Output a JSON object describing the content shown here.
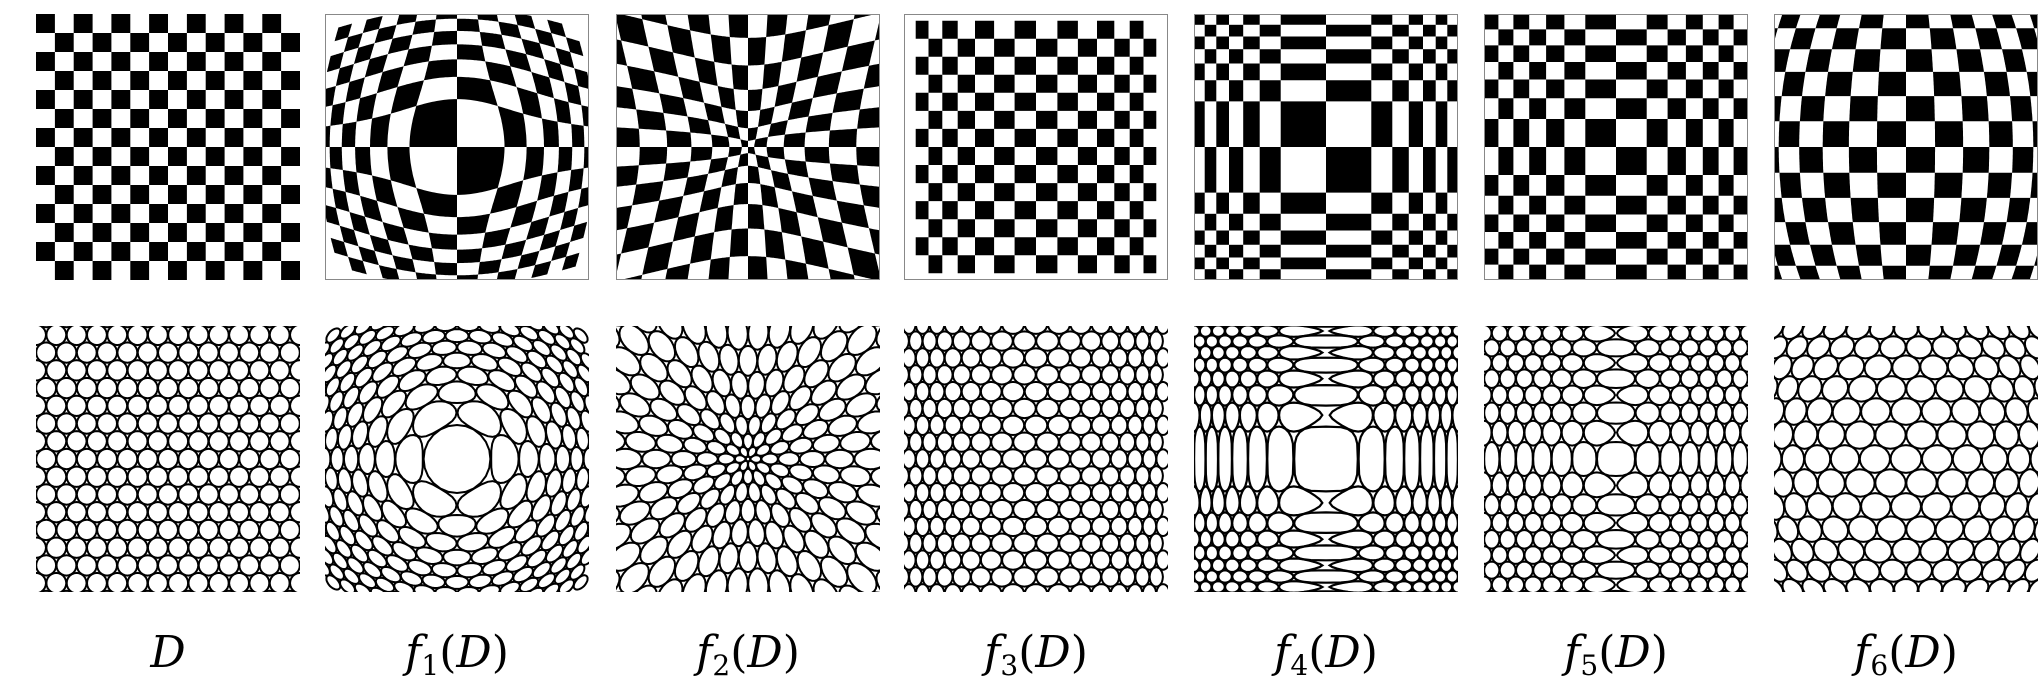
{
  "figure": {
    "columns": [
      {
        "id": "D",
        "func": "",
        "sub": "",
        "arg": "D"
      },
      {
        "id": "f1",
        "func": "f",
        "sub": "1",
        "arg": "D"
      },
      {
        "id": "f2",
        "func": "f",
        "sub": "2",
        "arg": "D"
      },
      {
        "id": "f3",
        "func": "f",
        "sub": "3",
        "arg": "D"
      },
      {
        "id": "f4",
        "func": "f",
        "sub": "4",
        "arg": "D"
      },
      {
        "id": "f5",
        "func": "f",
        "sub": "5",
        "arg": "D"
      },
      {
        "id": "f6",
        "func": "f",
        "sub": "6",
        "arg": "D"
      }
    ],
    "rows": [
      "checkerboard",
      "honeycomb"
    ],
    "colors": {
      "ink": "#000000",
      "paper": "#ffffff"
    }
  }
}
